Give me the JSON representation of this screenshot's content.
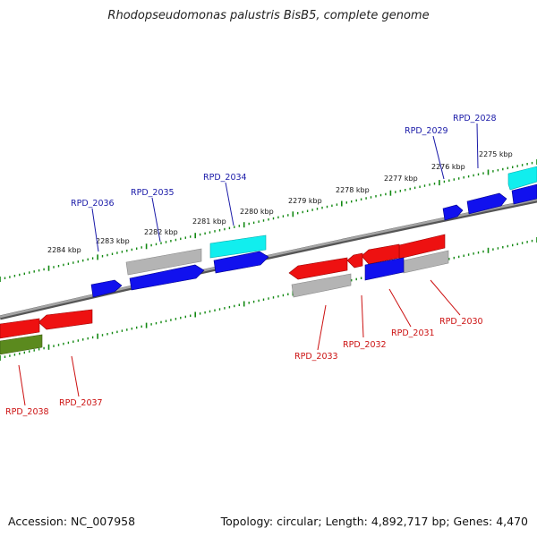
{
  "title": "Rhodopseudomonas palustris BisB5, complete genome",
  "footer": {
    "accession": "Accession: NC_007958",
    "summary": "Topology: circular; Length: 4,892,717 bp; Genes: 4,470"
  },
  "colors": {
    "backbone": "#808080",
    "ticks": "#118811",
    "label_forward": "#1a1aa8",
    "label_reverse": "#cc1111",
    "red": "#ee1111",
    "blue": "#1111ee",
    "gray": "#b4b4b4",
    "cyan": "#11eeee",
    "olive": "#5b8a1e"
  },
  "tick_labels": [
    {
      "text": "2275 kbp",
      "pos": 2275
    },
    {
      "text": "2276 kbp",
      "pos": 2276
    },
    {
      "text": "2277 kbp",
      "pos": 2277
    },
    {
      "text": "2278 kbp",
      "pos": 2278
    },
    {
      "text": "2279 kbp",
      "pos": 2279
    },
    {
      "text": "2280 kbp",
      "pos": 2280
    },
    {
      "text": "2281 kbp",
      "pos": 2281
    },
    {
      "text": "2282 kbp",
      "pos": 2282
    },
    {
      "text": "2283 kbp",
      "pos": 2283
    },
    {
      "text": "2284 kbp",
      "pos": 2284
    }
  ],
  "genes_forward": [
    {
      "id": "RPD_2028",
      "color": "cyan"
    },
    {
      "id": "RPD_2029",
      "color": "blue"
    },
    {
      "id": "RPD_2034",
      "color": "cyan"
    },
    {
      "id": "RPD_2035",
      "color": "gray"
    },
    {
      "id": "RPD_2036",
      "color": "blue"
    }
  ],
  "genes_reverse": [
    {
      "id": "RPD_2030",
      "color": "gray"
    },
    {
      "id": "RPD_2031",
      "color": "red"
    },
    {
      "id": "RPD_2032",
      "color": "red"
    },
    {
      "id": "RPD_2033",
      "color": "red"
    },
    {
      "id": "RPD_2037",
      "color": "red"
    },
    {
      "id": "RPD_2038",
      "color": "red"
    }
  ]
}
